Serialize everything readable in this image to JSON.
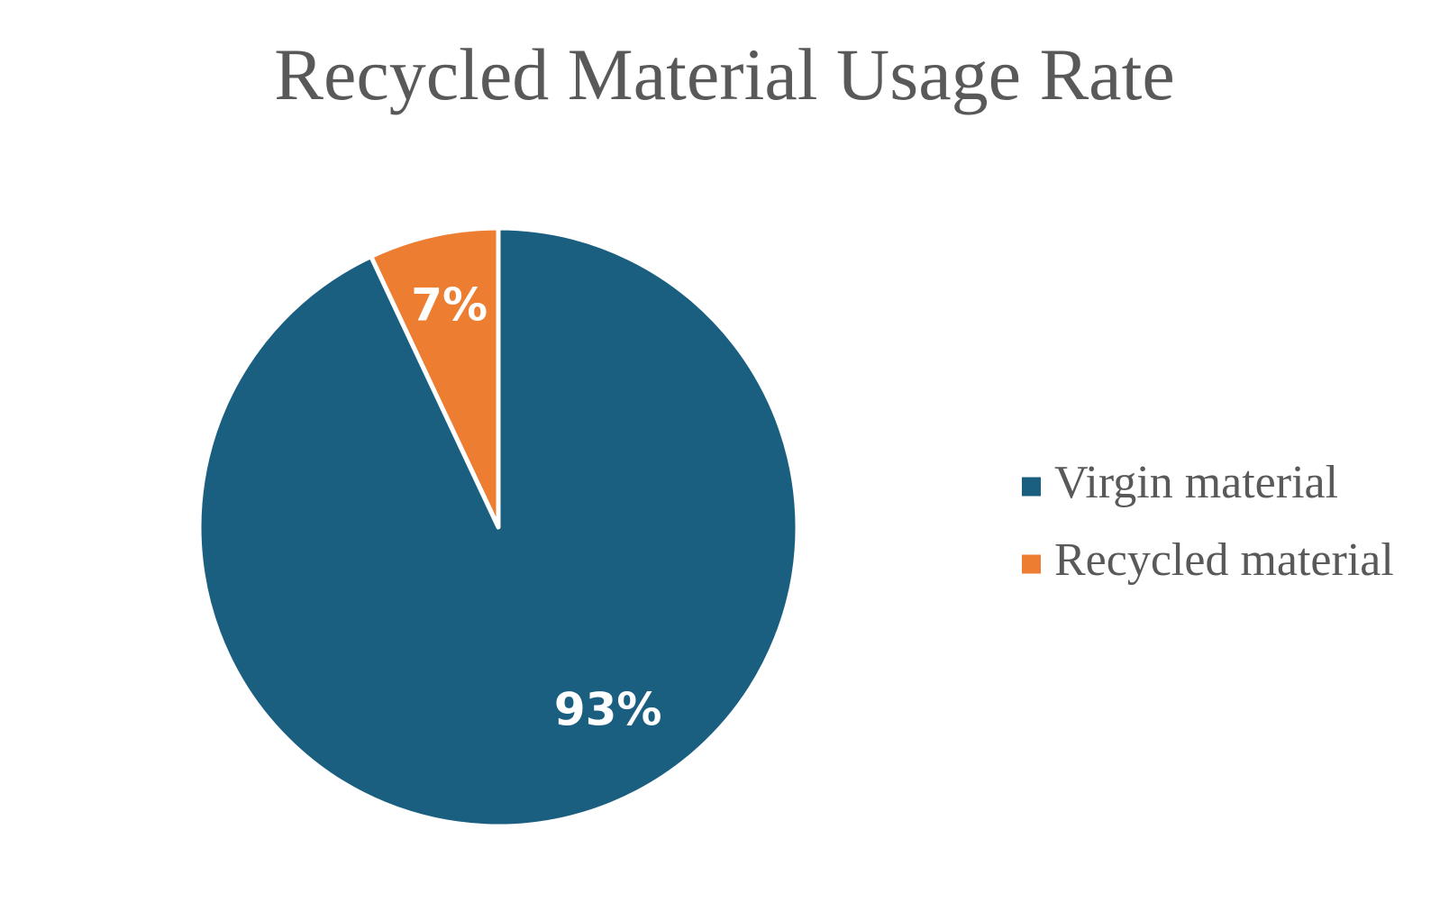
{
  "chart_data": {
    "type": "pie",
    "title": "Recycled Material Usage Rate",
    "start_angle_deg": 0,
    "direction": "clockwise",
    "legend_position": "right",
    "slices": [
      {
        "name": "Recycled material",
        "value": 7,
        "label": "7%",
        "color": "#ED7D31"
      },
      {
        "name": "Virgin material",
        "value": 93,
        "label": "93%",
        "color": "#1A5F80"
      }
    ],
    "legend": [
      {
        "name": "Virgin material",
        "color": "#1A5F80"
      },
      {
        "name": "Recycled material",
        "color": "#ED7D31"
      }
    ]
  }
}
